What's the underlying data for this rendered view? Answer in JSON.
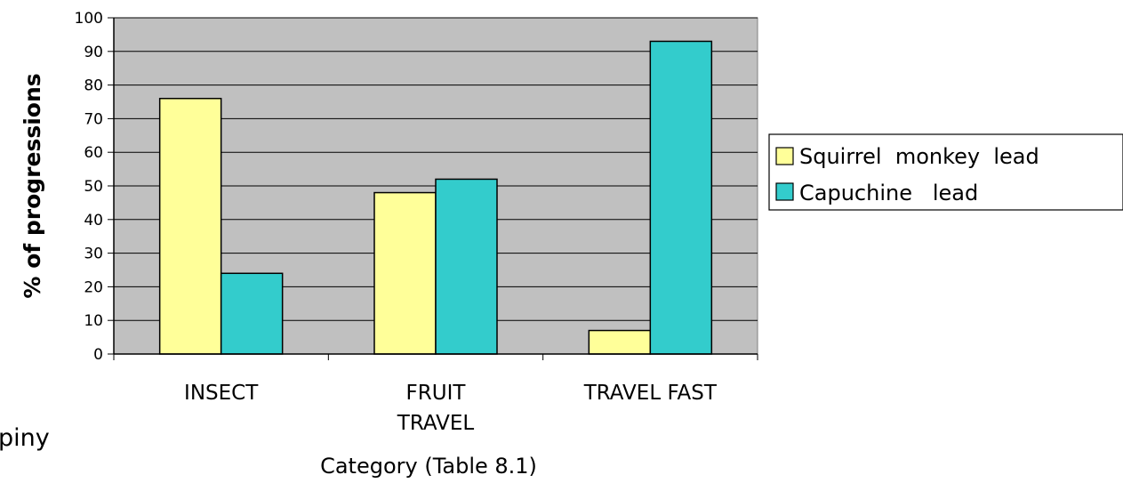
{
  "chart_data": {
    "type": "bar",
    "categories": [
      [
        "INSECT"
      ],
      [
        "FRUIT",
        "TRAVEL"
      ],
      [
        "TRAVEL  FAST"
      ]
    ],
    "series": [
      {
        "name": "Squirrel  monkey  lead",
        "color": "#ffff99",
        "values": [
          76,
          48,
          7
        ]
      },
      {
        "name": "Capuchine   lead",
        "color": "#33cccc",
        "values": [
          24,
          52,
          93
        ]
      }
    ],
    "ylabel": "% of progressions",
    "xlabel": "Category  (Table  8.1)",
    "ylim": [
      0,
      100
    ],
    "yticks": [
      0,
      10,
      20,
      30,
      40,
      50,
      60,
      70,
      80,
      90,
      100
    ],
    "grid": true,
    "plot_background": "#c0c0c0",
    "legend": "right"
  },
  "side_text": "piny"
}
